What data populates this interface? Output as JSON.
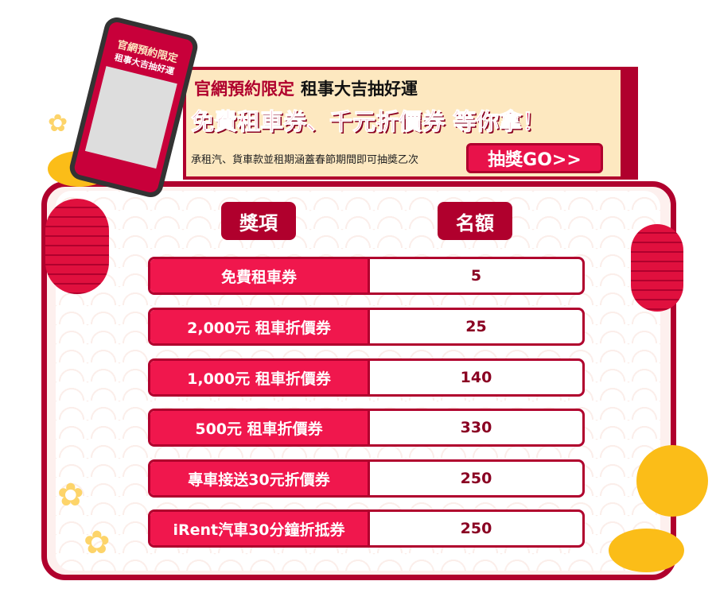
{
  "phone": {
    "line1": "官網預約限定",
    "line2": "租事大吉抽好運"
  },
  "banner": {
    "tag": "官網預約限定",
    "title": "租事大吉抽好運",
    "headline": "免費租車券、千元折價券 等你拿！",
    "note": "承租汽、貨車款並租期涵蓋春節期間即可抽獎乙次",
    "button": "抽獎GO>>"
  },
  "table": {
    "headers": [
      "獎項",
      "名額"
    ],
    "rows": [
      {
        "prize": "免費租車券",
        "count": "5"
      },
      {
        "prize": "2,000元 租車折價券",
        "count": "25"
      },
      {
        "prize": "1,000元 租車折價券",
        "count": "140"
      },
      {
        "prize": "500元 租車折價券",
        "count": "330"
      },
      {
        "prize": "專車接送30元折價券",
        "count": "250"
      },
      {
        "prize": "iRent汽車30分鐘折抵券",
        "count": "250"
      }
    ]
  },
  "colors": {
    "primary": "#b0002d",
    "accent": "#f0174d",
    "cream": "#fde8c0"
  }
}
